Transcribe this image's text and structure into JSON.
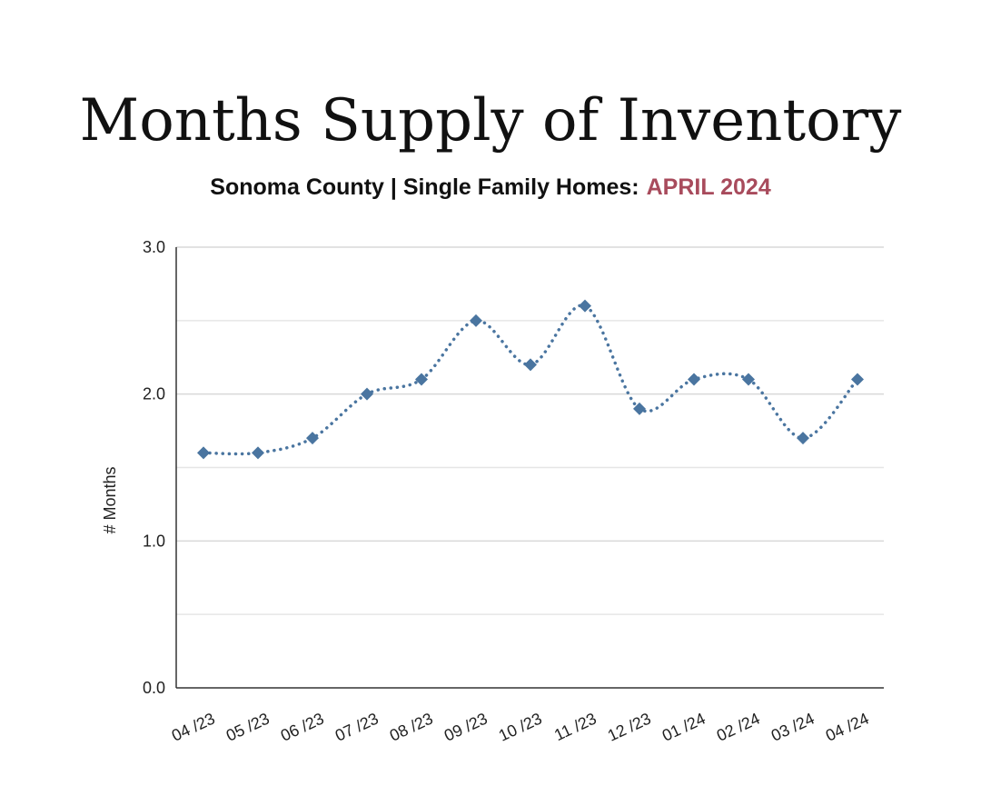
{
  "header": {
    "title": "Months Supply of Inventory",
    "subtitle_prefix": "Sonoma County | Single Family Homes:",
    "subtitle_highlight": "APRIL 2024"
  },
  "colors": {
    "accent": "#a84b5c",
    "series": "#4a75a0",
    "grid": "#d9d9d9",
    "axis": "#333333"
  },
  "chart_data": {
    "type": "line",
    "title": "Months Supply of Inventory",
    "subtitle": "Sonoma County | Single Family Homes: APRIL 2024",
    "xlabel": "",
    "ylabel": "# Months",
    "categories": [
      "04 /23",
      "05 /23",
      "06 /23",
      "07 /23",
      "08 /23",
      "09 /23",
      "10 /23",
      "11 /23",
      "12 /23",
      "01 /24",
      "02 /24",
      "03 /24",
      "04 /24"
    ],
    "series": [
      {
        "values": [
          1.6,
          1.6,
          1.7,
          2.0,
          2.1,
          2.5,
          2.2,
          2.6,
          1.9,
          2.1,
          2.1,
          1.7,
          2.1
        ],
        "line_style": "dotted",
        "marker": "diamond",
        "smooth": true
      }
    ],
    "ylim": [
      0,
      3
    ],
    "yticks": [
      0,
      1,
      2,
      3
    ],
    "ytick_labels": [
      "0.0",
      "1.0",
      "2.0",
      "3.0"
    ],
    "minor_gridlines": [
      0.5,
      1.5,
      2.5
    ],
    "grid": true,
    "legend": "none"
  }
}
